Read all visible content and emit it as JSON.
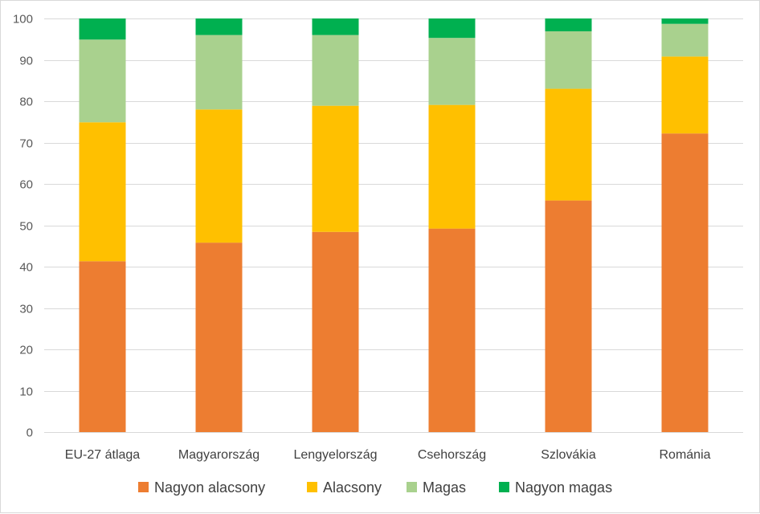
{
  "chart_data": {
    "type": "bar",
    "stacked": true,
    "title": "",
    "xlabel": "",
    "ylabel": "",
    "ylim": [
      0,
      100
    ],
    "yticks": [
      0,
      10,
      20,
      30,
      40,
      50,
      60,
      70,
      80,
      90,
      100
    ],
    "grid": true,
    "legend_position": "bottom",
    "categories": [
      "EU-27 átlaga",
      "Magyarország",
      "Lengyelország",
      "Csehország",
      "Szlovákia",
      "Románia"
    ],
    "series": [
      {
        "name": "Nagyon alacsony",
        "color": "#ED7D31",
        "values": [
          41.3,
          45.8,
          48.4,
          49.2,
          56.0,
          72.2
        ]
      },
      {
        "name": "Alacsony",
        "color": "#FFC000",
        "values": [
          33.6,
          32.2,
          30.5,
          29.9,
          27.0,
          18.6
        ]
      },
      {
        "name": "Magas",
        "color": "#A9D18E",
        "values": [
          20.0,
          18.0,
          17.1,
          16.2,
          13.9,
          7.9
        ]
      },
      {
        "name": "Nagyon magas",
        "color": "#00B050",
        "values": [
          5.1,
          4.0,
          4.0,
          4.7,
          3.1,
          1.3
        ]
      }
    ]
  }
}
